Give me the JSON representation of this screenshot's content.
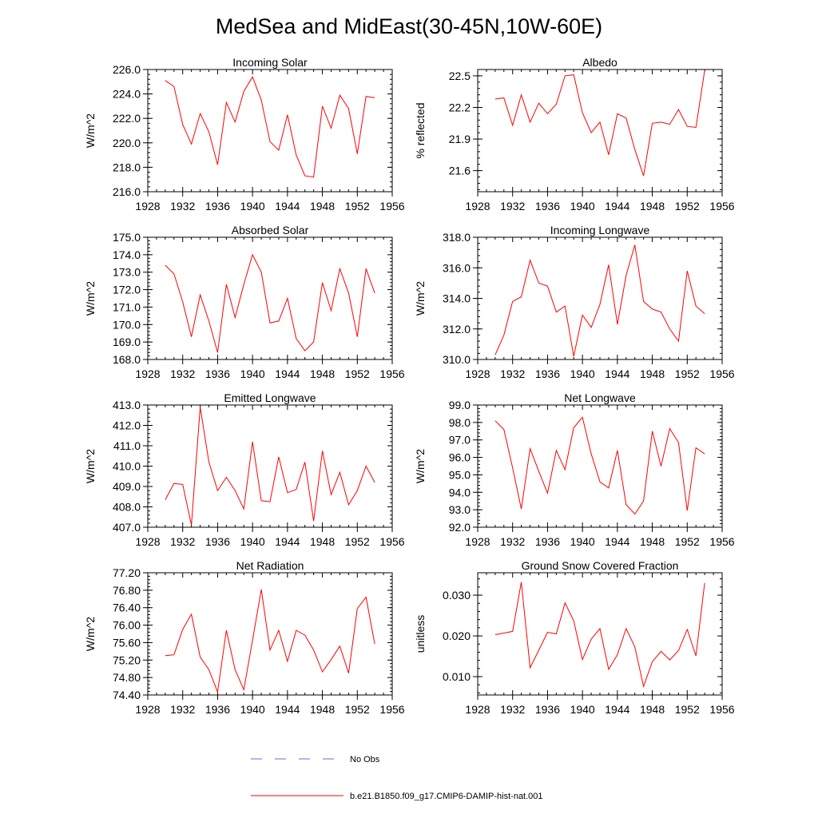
{
  "title": "MedSea and MidEast(30-45N,10W-60E)",
  "legend": [
    {
      "label": "No Obs",
      "color": "#6a6ad0",
      "style": "dashed"
    },
    {
      "label": "b.e21.B1850.f09_g17.CMIP6-DAMIP-hist-nat.001",
      "color": "#ff0000",
      "style": "solid"
    }
  ],
  "chart_data": [
    {
      "type": "line",
      "title": "Incoming Solar",
      "xlabel": "",
      "ylabel": "W/m^2",
      "xlim": [
        1928,
        1956
      ],
      "ylim": [
        216.0,
        226.0
      ],
      "xticks": [
        1928,
        1932,
        1936,
        1940,
        1944,
        1948,
        1952,
        1956
      ],
      "xtick_labels": [
        "1928",
        "1932",
        "1936",
        "1940",
        "1944",
        "1948",
        "1952",
        "1956"
      ],
      "yticks": [
        216,
        218,
        220,
        222,
        224,
        226
      ],
      "ytick_labels": [
        "216.0",
        "218.0",
        "220.0",
        "222.0",
        "224.0",
        "226.0"
      ],
      "color": "#ff0000",
      "grid": false,
      "x": [
        1930,
        1931,
        1932,
        1933,
        1934,
        1935,
        1936,
        1937,
        1938,
        1939,
        1940,
        1941,
        1942,
        1943,
        1944,
        1945,
        1946,
        1947,
        1948,
        1949,
        1950,
        1951,
        1952,
        1953,
        1954
      ],
      "y": [
        225.1,
        224.6,
        221.5,
        219.9,
        222.4,
        220.9,
        218.2,
        223.3,
        221.7,
        224.2,
        225.4,
        223.5,
        220.1,
        219.4,
        222.3,
        219.0,
        217.3,
        217.2,
        223.0,
        221.2,
        223.9,
        222.8,
        219.1,
        223.8,
        223.7
      ]
    },
    {
      "type": "line",
      "title": "Albedo",
      "xlabel": "",
      "ylabel": "% reflected",
      "xlim": [
        1928,
        1956
      ],
      "ylim": [
        21.4,
        22.56
      ],
      "xticks": [
        1928,
        1932,
        1936,
        1940,
        1944,
        1948,
        1952,
        1956
      ],
      "xtick_labels": [
        "1928",
        "1932",
        "1936",
        "1940",
        "1944",
        "1948",
        "1952",
        "1956"
      ],
      "yticks": [
        21.6,
        21.9,
        22.2,
        22.5
      ],
      "ytick_labels": [
        "21.6",
        "21.9",
        "22.2",
        "22.5"
      ],
      "color": "#ff0000",
      "grid": false,
      "x": [
        1930,
        1931,
        1932,
        1933,
        1934,
        1935,
        1936,
        1937,
        1938,
        1939,
        1940,
        1941,
        1942,
        1943,
        1944,
        1945,
        1946,
        1947,
        1948,
        1949,
        1950,
        1951,
        1952,
        1953,
        1954
      ],
      "y": [
        22.28,
        22.29,
        22.03,
        22.32,
        22.06,
        22.24,
        22.14,
        22.23,
        22.5,
        22.51,
        22.15,
        21.96,
        22.06,
        21.75,
        22.14,
        22.1,
        21.8,
        21.55,
        22.05,
        22.06,
        22.04,
        22.18,
        22.02,
        22.01,
        22.55
      ]
    },
    {
      "type": "line",
      "title": "Absorbed Solar",
      "xlabel": "",
      "ylabel": "W/m^2",
      "xlim": [
        1928,
        1956
      ],
      "ylim": [
        168.0,
        175.0
      ],
      "xticks": [
        1928,
        1932,
        1936,
        1940,
        1944,
        1948,
        1952,
        1956
      ],
      "xtick_labels": [
        "1928",
        "1932",
        "1936",
        "1940",
        "1944",
        "1948",
        "1952",
        "1956"
      ],
      "yticks": [
        168,
        169,
        170,
        171,
        172,
        173,
        174,
        175
      ],
      "ytick_labels": [
        "168.0",
        "169.0",
        "170.0",
        "171.0",
        "172.0",
        "173.0",
        "174.0",
        "175.0"
      ],
      "color": "#ff0000",
      "grid": false,
      "x": [
        1930,
        1931,
        1932,
        1933,
        1934,
        1935,
        1936,
        1937,
        1938,
        1939,
        1940,
        1941,
        1942,
        1943,
        1944,
        1945,
        1946,
        1947,
        1948,
        1949,
        1950,
        1951,
        1952,
        1953,
        1954
      ],
      "y": [
        173.4,
        172.9,
        171.3,
        169.3,
        171.7,
        170.2,
        168.4,
        172.3,
        170.4,
        172.3,
        174.0,
        173.0,
        170.1,
        170.2,
        171.5,
        169.2,
        168.5,
        169.0,
        172.4,
        170.8,
        173.2,
        171.8,
        169.3,
        173.2,
        171.8
      ]
    },
    {
      "type": "line",
      "title": "Incoming Longwave",
      "xlabel": "",
      "ylabel": "W/m^2",
      "xlim": [
        1928,
        1956
      ],
      "ylim": [
        310.0,
        318.0
      ],
      "xticks": [
        1928,
        1932,
        1936,
        1940,
        1944,
        1948,
        1952,
        1956
      ],
      "xtick_labels": [
        "1928",
        "1932",
        "1936",
        "1940",
        "1944",
        "1948",
        "1952",
        "1956"
      ],
      "yticks": [
        310,
        312,
        314,
        316,
        318
      ],
      "ytick_labels": [
        "310.0",
        "312.0",
        "314.0",
        "316.0",
        "318.0"
      ],
      "color": "#ff0000",
      "grid": false,
      "x": [
        1930,
        1931,
        1932,
        1933,
        1934,
        1935,
        1936,
        1937,
        1938,
        1939,
        1940,
        1941,
        1942,
        1943,
        1944,
        1945,
        1946,
        1947,
        1948,
        1949,
        1950,
        1951,
        1952,
        1953,
        1954
      ],
      "y": [
        310.3,
        311.6,
        313.8,
        314.1,
        316.5,
        315.0,
        314.8,
        313.1,
        313.5,
        310.2,
        312.9,
        312.1,
        313.6,
        316.2,
        312.3,
        315.5,
        317.5,
        313.8,
        313.3,
        313.1,
        312.0,
        311.2,
        315.8,
        313.5,
        313.0
      ]
    },
    {
      "type": "line",
      "title": "Emitted Longwave",
      "xlabel": "",
      "ylabel": "W/m^2",
      "xlim": [
        1928,
        1956
      ],
      "ylim": [
        407.0,
        413.0
      ],
      "xticks": [
        1928,
        1932,
        1936,
        1940,
        1944,
        1948,
        1952,
        1956
      ],
      "xtick_labels": [
        "1928",
        "1932",
        "1936",
        "1940",
        "1944",
        "1948",
        "1952",
        "1956"
      ],
      "yticks": [
        407,
        408,
        409,
        410,
        411,
        412,
        413
      ],
      "ytick_labels": [
        "407.0",
        "408.0",
        "409.0",
        "410.0",
        "411.0",
        "412.0",
        "413.0"
      ],
      "color": "#ff0000",
      "grid": false,
      "x": [
        1930,
        1931,
        1932,
        1933,
        1934,
        1935,
        1936,
        1937,
        1938,
        1939,
        1940,
        1941,
        1942,
        1943,
        1944,
        1945,
        1946,
        1947,
        1948,
        1949,
        1950,
        1951,
        1952,
        1953,
        1954
      ],
      "y": [
        408.35,
        409.15,
        409.1,
        407.1,
        412.9,
        410.2,
        408.8,
        409.45,
        408.8,
        407.9,
        411.2,
        408.3,
        408.25,
        410.45,
        408.7,
        408.85,
        410.2,
        407.3,
        410.75,
        408.6,
        409.7,
        408.1,
        408.8,
        410.0,
        409.2
      ]
    },
    {
      "type": "line",
      "title": "Net Longwave",
      "xlabel": "",
      "ylabel": "W/m^2",
      "xlim": [
        1928,
        1956
      ],
      "ylim": [
        92.0,
        99.0
      ],
      "xticks": [
        1928,
        1932,
        1936,
        1940,
        1944,
        1948,
        1952,
        1956
      ],
      "xtick_labels": [
        "1928",
        "1932",
        "1936",
        "1940",
        "1944",
        "1948",
        "1952",
        "1956"
      ],
      "yticks": [
        92,
        93,
        94,
        95,
        96,
        97,
        98,
        99
      ],
      "ytick_labels": [
        "92.0",
        "93.0",
        "94.0",
        "95.0",
        "96.0",
        "97.0",
        "98.0",
        "99.0"
      ],
      "color": "#ff0000",
      "grid": false,
      "x": [
        1930,
        1931,
        1932,
        1933,
        1934,
        1935,
        1936,
        1937,
        1938,
        1939,
        1940,
        1941,
        1942,
        1943,
        1944,
        1945,
        1946,
        1947,
        1948,
        1949,
        1950,
        1951,
        1952,
        1953,
        1954
      ],
      "y": [
        98.1,
        97.6,
        95.4,
        93.05,
        96.5,
        95.2,
        93.95,
        96.4,
        95.3,
        97.7,
        98.3,
        96.2,
        94.6,
        94.25,
        96.4,
        93.3,
        92.75,
        93.5,
        97.5,
        95.5,
        97.65,
        96.85,
        92.95,
        96.55,
        96.2
      ]
    },
    {
      "type": "line",
      "title": "Net Radiation",
      "xlabel": "",
      "ylabel": "W/m^2",
      "xlim": [
        1928,
        1956
      ],
      "ylim": [
        74.4,
        77.2
      ],
      "xticks": [
        1928,
        1932,
        1936,
        1940,
        1944,
        1948,
        1952,
        1956
      ],
      "xtick_labels": [
        "1928",
        "1932",
        "1936",
        "1940",
        "1944",
        "1948",
        "1952",
        "1956"
      ],
      "yticks": [
        74.4,
        74.8,
        75.2,
        75.6,
        76.0,
        76.4,
        76.8,
        77.2
      ],
      "ytick_labels": [
        "74.40",
        "74.80",
        "75.20",
        "75.60",
        "76.00",
        "76.40",
        "76.80",
        "77.20"
      ],
      "color": "#ff0000",
      "grid": false,
      "x": [
        1930,
        1931,
        1932,
        1933,
        1934,
        1935,
        1936,
        1937,
        1938,
        1939,
        1940,
        1941,
        1942,
        1943,
        1944,
        1945,
        1946,
        1947,
        1948,
        1949,
        1950,
        1951,
        1952,
        1953,
        1954
      ],
      "y": [
        75.3,
        75.32,
        75.9,
        76.25,
        75.27,
        74.98,
        74.47,
        75.88,
        74.98,
        74.52,
        75.65,
        76.82,
        75.43,
        75.88,
        75.17,
        75.88,
        75.77,
        75.43,
        74.93,
        75.21,
        75.52,
        74.9,
        76.38,
        76.64,
        75.57
      ]
    },
    {
      "type": "line",
      "title": "Ground Snow Covered Fraction",
      "xlabel": "",
      "ylabel": "unitless",
      "xlim": [
        1928,
        1956
      ],
      "ylim": [
        0.0055,
        0.0355
      ],
      "xticks": [
        1928,
        1932,
        1936,
        1940,
        1944,
        1948,
        1952,
        1956
      ],
      "xtick_labels": [
        "1928",
        "1932",
        "1936",
        "1940",
        "1944",
        "1948",
        "1952",
        "1956"
      ],
      "yticks": [
        0.01,
        0.02,
        0.03
      ],
      "ytick_labels": [
        "0.010",
        "0.020",
        "0.030"
      ],
      "color": "#ff0000",
      "grid": false,
      "x": [
        1930,
        1931,
        1932,
        1933,
        1934,
        1935,
        1936,
        1937,
        1938,
        1939,
        1940,
        1941,
        1942,
        1943,
        1944,
        1945,
        1946,
        1947,
        1948,
        1949,
        1950,
        1951,
        1952,
        1953,
        1954
      ],
      "y": [
        0.0203,
        0.0207,
        0.0211,
        0.0332,
        0.0122,
        0.0165,
        0.0209,
        0.0205,
        0.0281,
        0.0237,
        0.0142,
        0.0192,
        0.0218,
        0.0118,
        0.0154,
        0.0218,
        0.0173,
        0.0076,
        0.0137,
        0.0162,
        0.0141,
        0.0164,
        0.0216,
        0.0151,
        0.033
      ]
    }
  ]
}
